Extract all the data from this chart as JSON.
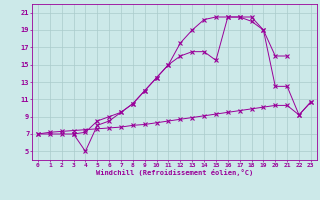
{
  "xlabel": "Windchill (Refroidissement éolien,°C)",
  "bg_color": "#cce9e9",
  "line_color": "#990099",
  "grid_color": "#aacccc",
  "xlim": [
    -0.5,
    23.5
  ],
  "ylim": [
    4.0,
    22.0
  ],
  "xticks": [
    0,
    1,
    2,
    3,
    4,
    5,
    6,
    7,
    8,
    9,
    10,
    11,
    12,
    13,
    14,
    15,
    16,
    17,
    18,
    19,
    20,
    21,
    22,
    23
  ],
  "yticks": [
    5,
    7,
    9,
    11,
    13,
    15,
    17,
    19,
    21
  ],
  "line1_x": [
    0,
    1,
    2,
    3,
    4,
    5,
    6,
    7,
    8,
    9,
    10,
    11,
    12,
    13,
    14,
    15,
    16,
    17,
    18,
    19,
    20,
    21,
    22,
    23
  ],
  "line1_y": [
    7.0,
    7.2,
    7.3,
    7.4,
    7.5,
    7.6,
    7.7,
    7.8,
    8.0,
    8.1,
    8.3,
    8.5,
    8.7,
    8.9,
    9.1,
    9.3,
    9.5,
    9.7,
    9.9,
    10.1,
    10.3,
    10.3,
    9.2,
    10.7
  ],
  "line2_x": [
    0,
    1,
    2,
    3,
    4,
    5,
    6,
    7,
    8,
    9,
    10,
    11,
    12,
    13,
    14,
    15,
    16,
    17,
    18,
    19,
    20,
    21
  ],
  "line2_y": [
    7.0,
    7.0,
    7.0,
    7.0,
    7.2,
    8.5,
    9.0,
    9.5,
    10.5,
    12.0,
    13.5,
    15.0,
    17.5,
    19.0,
    20.2,
    20.5,
    20.5,
    20.5,
    20.0,
    19.0,
    16.0,
    16.0
  ],
  "line3_x": [
    3,
    4,
    5,
    6,
    7,
    8,
    9,
    10,
    11,
    12,
    13,
    14,
    15,
    16,
    17,
    18,
    19,
    20,
    21,
    22,
    23
  ],
  "line3_y": [
    7.0,
    5.0,
    8.0,
    8.5,
    9.5,
    10.5,
    12.0,
    13.5,
    15.0,
    16.0,
    16.5,
    16.5,
    15.5,
    20.5,
    20.5,
    20.5,
    19.0,
    12.5,
    12.5,
    9.2,
    10.7
  ]
}
